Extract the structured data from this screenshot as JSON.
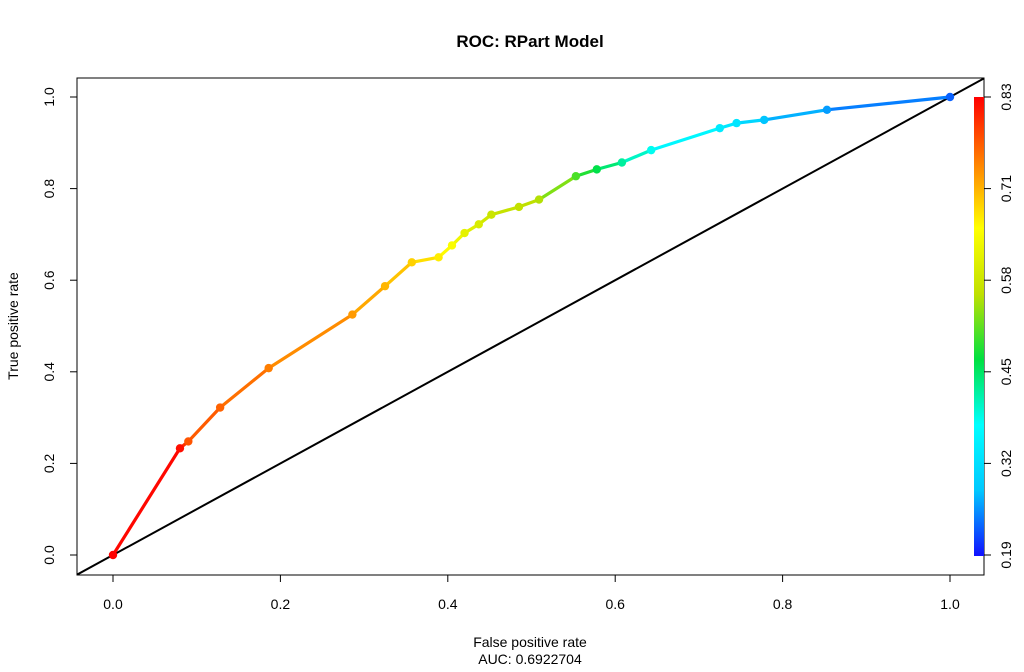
{
  "chart_data": {
    "type": "line",
    "title": "ROC: RPart Model",
    "xlabel": "False positive rate",
    "xlabel_sub": "AUC: 0.6922704",
    "ylabel": "True positive rate",
    "xlim": [
      0,
      1
    ],
    "ylim": [
      0,
      1
    ],
    "x_ticks": [
      "0.0",
      "0.2",
      "0.4",
      "0.6",
      "0.8",
      "1.0"
    ],
    "y_ticks": [
      "0.0",
      "0.2",
      "0.4",
      "0.6",
      "0.8",
      "1.0"
    ],
    "colorbar": {
      "ticks": [
        "0.19",
        "0.32",
        "0.45",
        "0.58",
        "0.71",
        "0.83"
      ],
      "range": [
        0.19,
        0.83
      ],
      "colors": [
        "#1010ff",
        "#00c8ff",
        "#00ffff",
        "#00e040",
        "#c0e000",
        "#ffff00",
        "#ff8000",
        "#ff0000"
      ]
    },
    "diagonal": {
      "x": [
        0,
        1
      ],
      "y": [
        0,
        1
      ],
      "color": "#000000"
    },
    "series": [
      {
        "points": [
          {
            "x": 0.0,
            "y": 0.0,
            "cutoff": 0.83
          },
          {
            "x": 0.08,
            "y": 0.233,
            "cutoff": 0.82
          },
          {
            "x": 0.09,
            "y": 0.248,
            "cutoff": 0.77
          },
          {
            "x": 0.128,
            "y": 0.322,
            "cutoff": 0.76
          },
          {
            "x": 0.186,
            "y": 0.408,
            "cutoff": 0.74
          },
          {
            "x": 0.286,
            "y": 0.525,
            "cutoff": 0.72
          },
          {
            "x": 0.325,
            "y": 0.587,
            "cutoff": 0.7
          },
          {
            "x": 0.357,
            "y": 0.639,
            "cutoff": 0.68
          },
          {
            "x": 0.389,
            "y": 0.65,
            "cutoff": 0.66
          },
          {
            "x": 0.405,
            "y": 0.676,
            "cutoff": 0.64
          },
          {
            "x": 0.42,
            "y": 0.703,
            "cutoff": 0.61
          },
          {
            "x": 0.437,
            "y": 0.722,
            "cutoff": 0.59
          },
          {
            "x": 0.452,
            "y": 0.743,
            "cutoff": 0.57
          },
          {
            "x": 0.485,
            "y": 0.76,
            "cutoff": 0.56
          },
          {
            "x": 0.509,
            "y": 0.776,
            "cutoff": 0.55
          },
          {
            "x": 0.553,
            "y": 0.827,
            "cutoff": 0.5
          },
          {
            "x": 0.578,
            "y": 0.842,
            "cutoff": 0.46
          },
          {
            "x": 0.608,
            "y": 0.857,
            "cutoff": 0.42
          },
          {
            "x": 0.643,
            "y": 0.884,
            "cutoff": 0.38
          },
          {
            "x": 0.725,
            "y": 0.932,
            "cutoff": 0.34
          },
          {
            "x": 0.745,
            "y": 0.943,
            "cutoff": 0.33
          },
          {
            "x": 0.778,
            "y": 0.95,
            "cutoff": 0.28
          },
          {
            "x": 0.853,
            "y": 0.972,
            "cutoff": 0.26
          },
          {
            "x": 1.0,
            "y": 1.0,
            "cutoff": 0.23
          }
        ]
      }
    ]
  }
}
